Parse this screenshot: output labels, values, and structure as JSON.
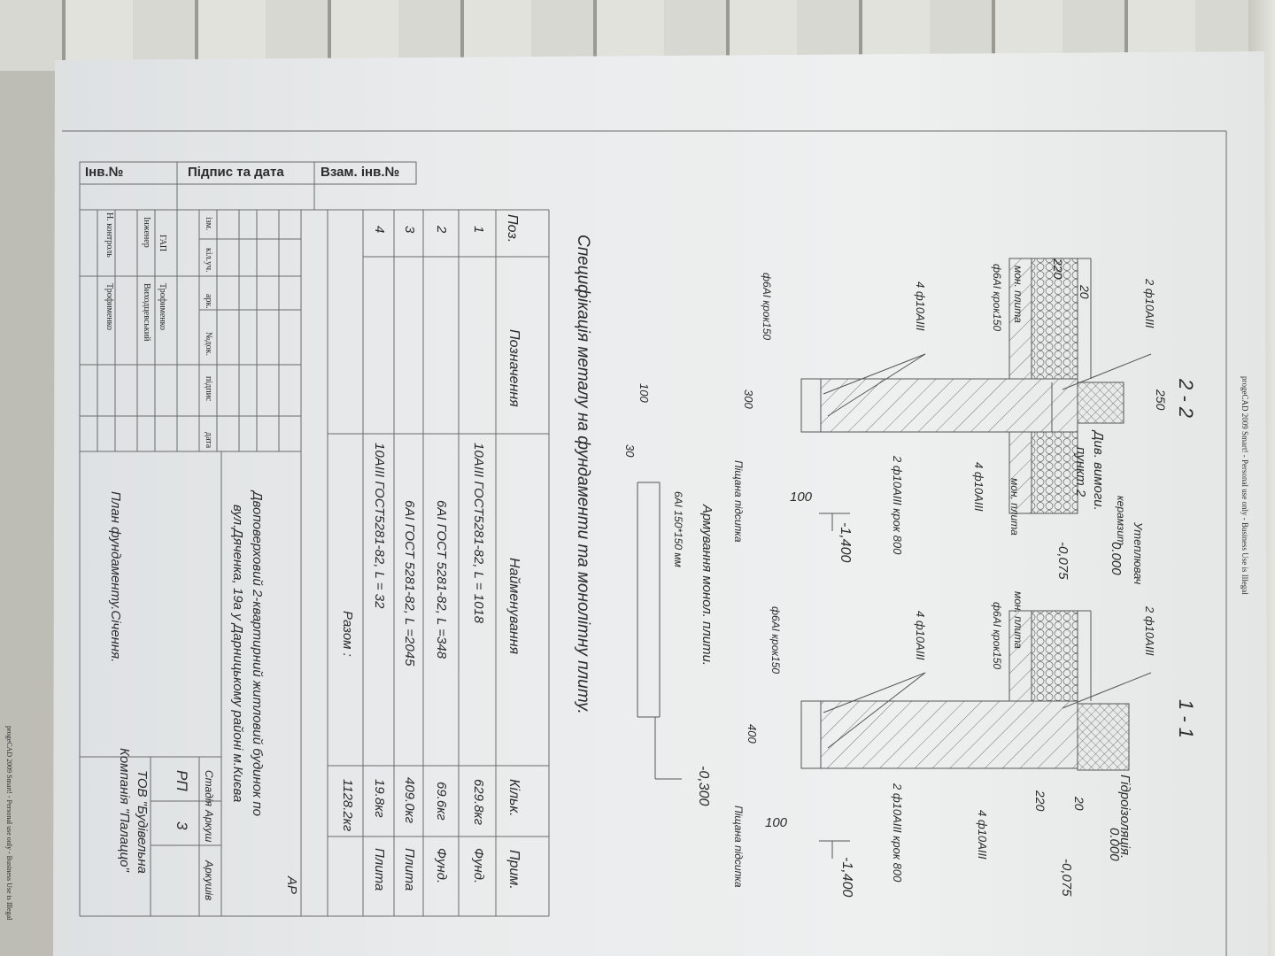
{
  "watermark": "progeCAD 2009 Smart! - Personal use only - Business Use is Illegal",
  "sections": {
    "s22": {
      "title": "2 - 2",
      "labels": [
        "250",
        "2 ф10АІІІ",
        "220",
        "20",
        "мон. плита",
        "ф6АІ крок150",
        "4 ф10АІІІ",
        "ф6АІ крок150",
        "300",
        "Див. вимоги.",
        "пункт 2",
        "Утеплювач",
        "керамзит",
        "0.000",
        "-0,075",
        "мон. плита",
        "4 ф10АІІІ",
        "2 ф10АІІІ крок 800",
        "100",
        "-1,400",
        "Піщана підсипка"
      ]
    },
    "s11": {
      "title": "1 - 1",
      "labels": [
        "2 ф10АІІІ",
        "мон. плита",
        "ф6АІ крок150",
        "4 ф10АІІІ",
        "ф6АІ крок150",
        "400",
        "Гідроізоляція.",
        "0.000",
        "220",
        "20",
        "-0,075",
        "4 ф10АІІІ",
        "2 ф10АІІІ крок 800",
        "100",
        "-1,400",
        "Піщана підсипка"
      ]
    },
    "slab": {
      "title": "Армування монол. плити.",
      "mesh": "6АІ 150*150 мм",
      "dim1": "100",
      "dim2": "30",
      "level": "-0,300"
    }
  },
  "spec": {
    "title": "Специфікація металу на фундаменти та монолітну плиту.",
    "headers": [
      "Поз.",
      "Позначення",
      "Найменування",
      "Кільк.",
      "Прим."
    ],
    "rows": [
      {
        "pos": "1",
        "name": "10АІІІ  ГОСТ5281-82,  L = 1018",
        "qty": "629.8кг",
        "note": "Фунд."
      },
      {
        "pos": "2",
        "name": "6АІ   ГОСТ 5281-82,  L =348",
        "qty": "69.6кг",
        "note": "Фунд."
      },
      {
        "pos": "3",
        "name": "6АІ   ГОСТ 5281-82,  L =2045",
        "qty": "409.0кг",
        "note": "Плита"
      },
      {
        "pos": "4",
        "name": "10АІІІ  ГОСТ5281-82,  L = 32",
        "qty": "19.8кг",
        "note": "Плита"
      }
    ],
    "total_label": "Разом :",
    "total": "1128.2кг"
  },
  "titleblock": {
    "header": [
      "Інв.№",
      "Підпис та дата",
      "Взам. інв.№"
    ],
    "cols": [
      "ізм.",
      "кіл.уч.",
      "арк.",
      "№док.",
      "підпис",
      "дата"
    ],
    "people": [
      {
        "role": "ГАП",
        "name": "Трофименко"
      },
      {
        "role": "Інженер",
        "name": "Виходцевський"
      },
      {
        "role": "Н. контроль",
        "name": "Трофименко"
      }
    ],
    "code": "АР",
    "project_line1": "Двоповерховий 2-квартирний житловий будинок по",
    "project_line2": "вул.Дяченка, 19а у Дарницькому районі м.Києва",
    "stage_label": "Стадія",
    "sheet_label": "Аркуш",
    "sheets_label": "Аркушів",
    "stage": "РП",
    "sheet": "3",
    "sheet_title": "План фундаменту.Січення.",
    "company_line1": "ТОВ \"Будівельна",
    "company_line2": "Компанія \"Палаццо\""
  }
}
